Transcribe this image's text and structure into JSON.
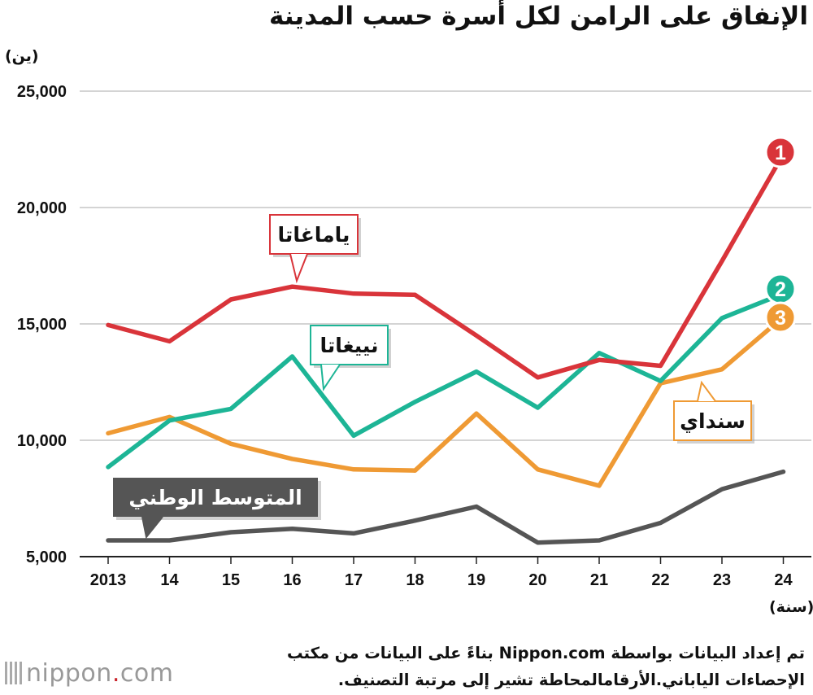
{
  "title": "الإنفاق على الرامن لكل أسرة حسب المدينة",
  "unit_label": "(ين)",
  "x_unit_label": "(سنة)",
  "footer": {
    "line1": "تم إعداد البيانات بواسطة Nippon.com بناءً على البيانات من مكتب",
    "line2": "الإحصاءات الياباني.الأرقامالمحاطة تشير إلى مرتبة التصنيف."
  },
  "logo": {
    "text": "nippon",
    "dot": ".",
    "suffix": "com"
  },
  "colors": {
    "yamagata": "#d9343a",
    "niigata": "#1db596",
    "sendai": "#ef9a34",
    "national": "#555555"
  },
  "chart_data": {
    "type": "line",
    "x": [
      "2013",
      "14",
      "15",
      "16",
      "17",
      "18",
      "19",
      "20",
      "21",
      "22",
      "23",
      "24"
    ],
    "ylim": [
      5000,
      25000
    ],
    "yticks": [
      "5,000",
      "10,000",
      "15,000",
      "20,000",
      "25,000"
    ],
    "ytick_values": [
      5000,
      10000,
      15000,
      20000,
      25000
    ],
    "grid": true,
    "series": [
      {
        "name": "ياماغاتا",
        "key": "yamagata",
        "rank": "1",
        "values": [
          14950,
          14250,
          16050,
          16600,
          16300,
          16250,
          14500,
          12700,
          13450,
          13200,
          17700,
          22300
        ]
      },
      {
        "name": "نييغاتا",
        "key": "niigata",
        "rank": "2",
        "values": [
          8850,
          10850,
          11350,
          13600,
          10200,
          11650,
          12950,
          11400,
          13750,
          12550,
          15250,
          16300
        ]
      },
      {
        "name": "سنداي",
        "key": "sendai",
        "rank": "3",
        "values": [
          10300,
          11000,
          9850,
          9200,
          8750,
          8700,
          11150,
          8750,
          8050,
          12450,
          13050,
          15300
        ]
      },
      {
        "name": "المتوسط الوطني",
        "key": "national",
        "rank": "",
        "values": [
          5700,
          5700,
          6050,
          6200,
          6000,
          6550,
          7150,
          5600,
          5700,
          6450,
          7900,
          8650
        ]
      }
    ]
  }
}
